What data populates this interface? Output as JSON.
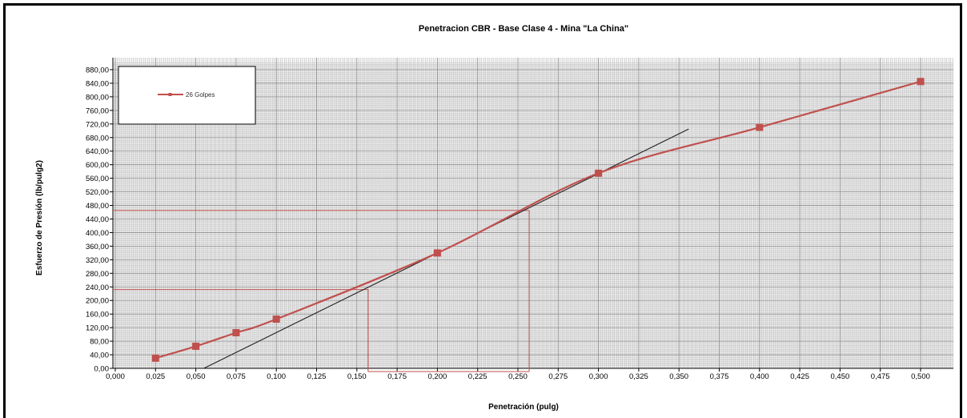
{
  "chart_data": {
    "type": "line",
    "title": "Penetracion CBR -  Base Clase 4 - Mina \"La China\"",
    "xlabel": "Penetración (pulg)",
    "ylabel": "Esfuerzo de Presión (lb/pulg2)",
    "xlim": [
      0,
      0.52
    ],
    "ylim": [
      0,
      900
    ],
    "x_ticks": [
      "0,000",
      "0,025",
      "0,050",
      "0,075",
      "0,100",
      "0,125",
      "0,150",
      "0,175",
      "0,200",
      "0,225",
      "0,250",
      "0,275",
      "0,300",
      "0,325",
      "0,350",
      "0,375",
      "0,400",
      "0,425",
      "0,450",
      "0,475",
      "0,500"
    ],
    "y_ticks": [
      "0,00",
      "40,00",
      "80,00",
      "120,00",
      "160,00",
      "200,00",
      "240,00",
      "280,00",
      "320,00",
      "360,00",
      "400,00",
      "440,00",
      "480,00",
      "520,00",
      "560,00",
      "600,00",
      "640,00",
      "680,00",
      "720,00",
      "760,00",
      "800,00",
      "840,00",
      "880,00"
    ],
    "grid": true,
    "legend_position": "top-left",
    "series": [
      {
        "name": "26 Golpes",
        "color": "#c0504d",
        "marker": "square",
        "smooth": true,
        "x": [
          0.025,
          0.05,
          0.075,
          0.1,
          0.2,
          0.3,
          0.4,
          0.5
        ],
        "y": [
          30,
          65,
          105,
          145,
          340,
          575,
          710,
          845
        ]
      }
    ],
    "tangent_line": {
      "color": "#222222",
      "x": [
        0.055,
        0.356
      ],
      "y": [
        0,
        705
      ]
    },
    "reference_lines": {
      "color": "#c0504d",
      "corrected_zero_x": 0.157,
      "points": [
        {
          "x": 0.157,
          "y": 232
        },
        {
          "x": 0.257,
          "y": 465
        }
      ]
    }
  }
}
